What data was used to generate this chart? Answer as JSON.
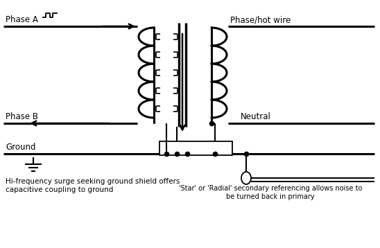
{
  "bg_color": "#ffffff",
  "line_color": "#000000",
  "labels": {
    "phase_a": "Phase A",
    "phase_b": "Phase B",
    "ground": "Ground",
    "phase_hot": "Phase/hot wire",
    "neutral": "Neutral",
    "hi_freq": "Hi-frequency surge seeking ground shield offers\ncapacitive coupling to ground",
    "star_radial": "'Star' or 'Radial' secondary referencing allows noise to\nbe turned back in primary"
  },
  "figsize": [
    5.48,
    3.58
  ],
  "dpi": 100
}
